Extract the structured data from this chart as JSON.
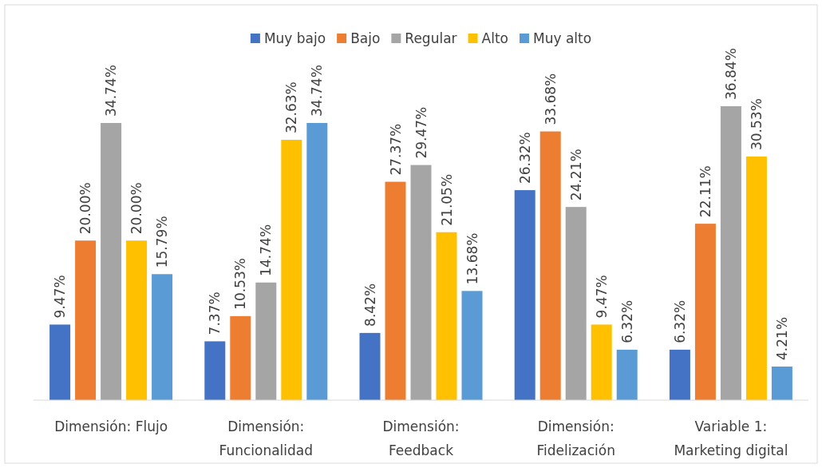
{
  "chart_data": {
    "type": "bar",
    "categories": [
      "Dimensión: Flujo",
      "Dimensión:\nFuncionalidad",
      "Dimensión:\nFeedback",
      "Dimensión:\nFidelización",
      "Variable 1:\nMarketing digital"
    ],
    "legend": "top",
    "series": [
      {
        "name": "Muy bajo",
        "color": "#4472c4",
        "values": [
          9.47,
          7.37,
          8.42,
          26.32,
          6.32
        ],
        "value_labels": [
          "9.47%",
          "7.37%",
          "8.42%",
          "26.32%",
          "6.32%"
        ]
      },
      {
        "name": "Bajo",
        "color": "#ed7d31",
        "values": [
          20.0,
          10.53,
          27.37,
          33.68,
          22.11
        ],
        "value_labels": [
          "20.00%",
          "10.53%",
          "27.37%",
          "33.68%",
          "22.11%"
        ]
      },
      {
        "name": "Regular",
        "color": "#a5a5a5",
        "values": [
          34.74,
          14.74,
          29.47,
          24.21,
          36.84
        ],
        "value_labels": [
          "34.74%",
          "14.74%",
          "29.47%",
          "24.21%",
          "36.84%"
        ]
      },
      {
        "name": "Alto",
        "color": "#ffc000",
        "values": [
          20.0,
          32.63,
          21.05,
          9.47,
          30.53
        ],
        "value_labels": [
          "20.00%",
          "32.63%",
          "21.05%",
          "9.47%",
          "30.53%"
        ]
      },
      {
        "name": "Muy alto",
        "color": "#5b9bd5",
        "values": [
          15.79,
          34.74,
          13.68,
          6.32,
          4.21
        ],
        "value_labels": [
          "15.79%",
          "34.74%",
          "13.68%",
          "6.32%",
          "4.21%"
        ]
      }
    ]
  }
}
